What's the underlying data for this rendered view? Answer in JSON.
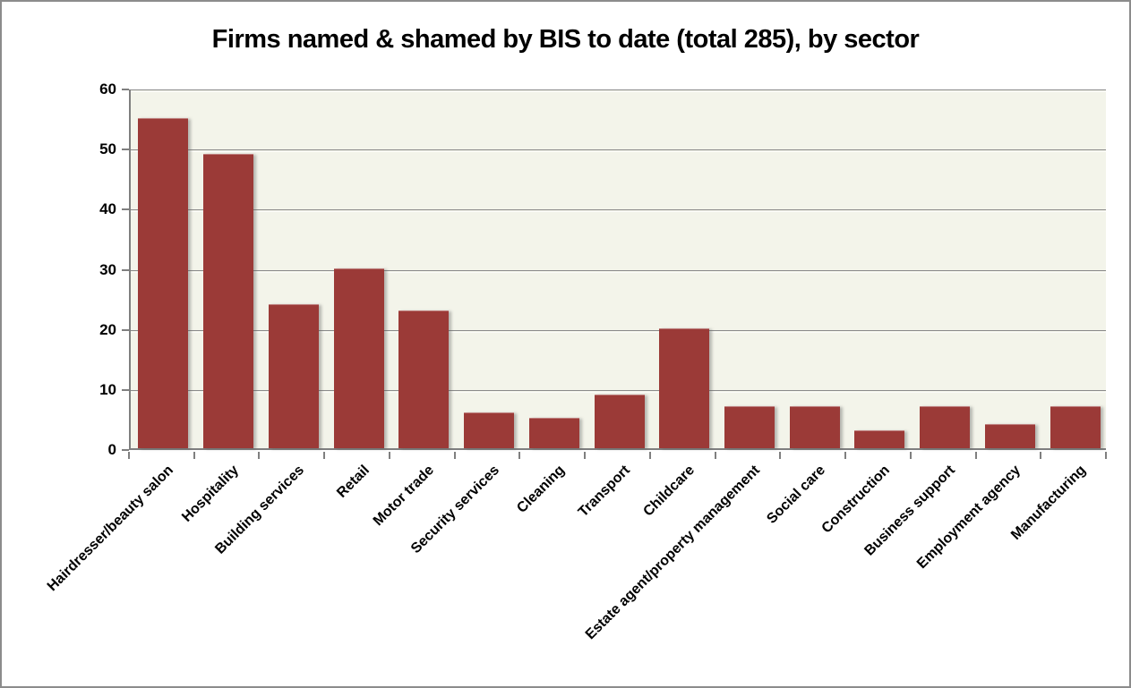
{
  "chart_data": {
    "type": "bar",
    "title": "Firms named & shamed by BIS to date (total 285), by sector",
    "categories": [
      "Hairdresser/beauty salon",
      "Hospitality",
      "Building services",
      "Retail",
      "Motor trade",
      "Security services",
      "Cleaning",
      "Transport",
      "Childcare",
      "Estate agent/property management",
      "Social care",
      "Construction",
      "Business support",
      "Employment agency",
      "Manufacturing"
    ],
    "values": [
      55,
      49,
      24,
      30,
      23,
      6,
      5,
      9,
      20,
      7,
      7,
      3,
      7,
      4,
      7
    ],
    "xlabel": "",
    "ylabel": "",
    "ylim": [
      0,
      60
    ],
    "yticks": [
      0,
      10,
      20,
      30,
      40,
      50,
      60
    ],
    "grid": true,
    "legend_position": "none",
    "bar_color": "#9B3A37",
    "plot_background_color": "#F3F4EA",
    "gridline_color": "#8A8A8A",
    "axis_color": "#7F7F7F",
    "page_background_color": "#FFFFFF",
    "frame_border_color": "#8C8C8C",
    "title_color": "#000000"
  }
}
